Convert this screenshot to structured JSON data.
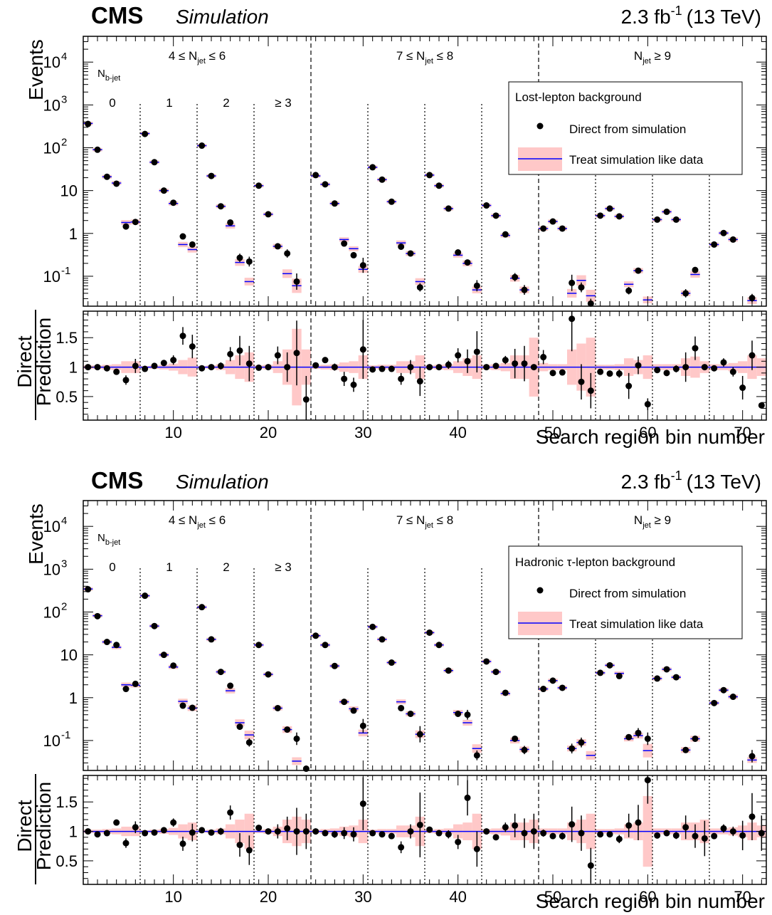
{
  "shared": {
    "cms_label": "CMS",
    "sim_label": "Simulation",
    "lumi_value": "2.3 fb",
    "lumi_exp": "-1",
    "lumi_energy": "(13 TeV)",
    "ylabel_top": "Events",
    "ylabel_ratio_top": "Direct",
    "ylabel_ratio_bottom": "Prediction",
    "xlabel": "Search region bin number",
    "ytick_labels_top": [
      "10^-1",
      "1",
      "10",
      "10^2",
      "10^3",
      "10^4"
    ],
    "ratio_tick_labels": [
      "0.5",
      "1",
      "1.5"
    ],
    "xtick_labels": [
      "10",
      "20",
      "30",
      "40",
      "50",
      "60",
      "70"
    ],
    "njet_regions": [
      {
        "pre": "4 ≤ N",
        "sub": "jet",
        "post": " ≤ 6",
        "x": 6.5
      },
      {
        "pre": "7 ≤ N",
        "sub": "jet",
        "post": " ≤ 8",
        "x": 30.5
      },
      {
        "pre": "N",
        "sub": "jet",
        "post": " ≥ 9",
        "x": 54.5
      }
    ],
    "nbjet_label": "N",
    "nbjet_sub": "b-jet",
    "nbjet_values": [
      {
        "label": "0",
        "x": 3.5
      },
      {
        "label": "1",
        "x": 9.5
      },
      {
        "label": "2",
        "x": 15.5
      },
      {
        "label": "≥ 3",
        "x": 21.5
      }
    ],
    "legend_markers": "Direct from simulation",
    "legend_band": "Treat simulation like data",
    "colors": {
      "band": "#ffc8c8",
      "line": "#0000ff",
      "marker": "#000000"
    }
  },
  "chart_data": [
    {
      "type": "scatter",
      "legend_title": "Lost-lepton background",
      "xlim": [
        0.5,
        72.5
      ],
      "ylim": [
        0.02,
        40000
      ],
      "yscale": "log",
      "ratio_ylim": [
        0.1,
        1.95
      ],
      "dashed_boundaries": [
        24.5,
        48.5
      ],
      "dotted_boundaries": [
        6.5,
        12.5,
        18.5,
        30.5,
        36.5,
        42.5,
        54.5,
        60.5,
        66.5
      ],
      "bins": [
        1,
        2,
        3,
        4,
        5,
        6,
        7,
        8,
        9,
        10,
        11,
        12,
        13,
        14,
        15,
        16,
        17,
        18,
        19,
        20,
        21,
        22,
        23,
        24,
        25,
        26,
        27,
        28,
        29,
        30,
        31,
        32,
        33,
        34,
        35,
        36,
        37,
        38,
        39,
        40,
        41,
        42,
        43,
        44,
        45,
        46,
        47,
        48,
        49,
        50,
        51,
        52,
        53,
        54,
        55,
        56,
        57,
        58,
        59,
        60,
        61,
        62,
        63,
        64,
        65,
        66,
        67,
        68,
        69,
        70,
        71,
        72
      ],
      "direct": [
        360,
        90,
        21,
        14.5,
        1.45,
        1.85,
        210,
        46,
        10,
        5.2,
        0.85,
        0.55,
        112,
        22,
        4.3,
        1.8,
        0.27,
        0.22,
        13,
        2.8,
        0.5,
        0.34,
        0.075,
        0.01,
        23,
        14,
        5,
        0.58,
        0.31,
        0.18,
        35,
        18,
        5.5,
        0.49,
        0.34,
        0.055,
        23,
        13,
        3.8,
        0.36,
        0.21,
        0.06,
        4.5,
        2.6,
        0.95,
        0.095,
        0.048,
        0.01,
        1.3,
        1.9,
        1.3,
        0.07,
        0.055,
        0.023,
        2.6,
        3.8,
        2.5,
        0.046,
        0.135,
        0.01,
        2.1,
        3.2,
        2.1,
        0.04,
        0.14,
        0.01,
        0.55,
        1.02,
        0.72,
        0.01,
        0.031,
        0.01
      ],
      "prediction": [
        370,
        90,
        21,
        15,
        1.8,
        1.85,
        215,
        46,
        10,
        5,
        0.55,
        0.42,
        112,
        22,
        4.3,
        1.5,
        0.21,
        0.075,
        13,
        2.8,
        0.5,
        0.115,
        0.06,
        0.01,
        22,
        14,
        5,
        0.72,
        0.44,
        0.145,
        35,
        18,
        5.5,
        0.6,
        0.34,
        0.075,
        23,
        13,
        3.8,
        0.31,
        0.2,
        0.048,
        4.5,
        2.6,
        0.9,
        0.09,
        0.048,
        0.01,
        1.3,
        1.9,
        1.3,
        0.04,
        0.08,
        0.035,
        2.6,
        3.8,
        2.5,
        0.065,
        0.135,
        0.028,
        2.1,
        3.2,
        2.1,
        0.04,
        0.11,
        0.01,
        0.55,
        1.02,
        0.72,
        0.01,
        0.027,
        0.01
      ],
      "ratio": [
        1.0,
        1.0,
        0.98,
        0.92,
        0.78,
        1.02,
        0.97,
        1.02,
        1.07,
        1.12,
        1.53,
        1.35,
        0.98,
        1.0,
        1.02,
        1.22,
        1.28,
        1.06,
        0.99,
        1.0,
        1.2,
        1.0,
        1.24,
        0.45,
        1.03,
        1.12,
        1.0,
        0.8,
        0.7,
        1.3,
        0.96,
        0.97,
        0.97,
        0.8,
        1.0,
        0.76,
        1.0,
        1.0,
        1.04,
        1.2,
        1.1,
        1.26,
        1.0,
        1.02,
        1.12,
        1.06,
        1.06,
        1.0,
        1.17,
        0.9,
        0.91,
        1.82,
        0.75,
        0.6,
        0.92,
        0.89,
        0.89,
        0.68,
        1.03,
        0.37,
        0.95,
        0.9,
        0.97,
        1.0,
        1.32,
        1.0,
        0.98,
        1.08,
        0.92,
        0.65,
        1.2,
        0.35
      ],
      "ratio_err": [
        0.03,
        0.03,
        0.03,
        0.05,
        0.08,
        0.12,
        0.03,
        0.04,
        0.05,
        0.08,
        0.15,
        0.2,
        0.02,
        0.04,
        0.06,
        0.12,
        0.25,
        0.3,
        0.04,
        0.05,
        0.15,
        0.25,
        0.55,
        0.4,
        0.03,
        0.04,
        0.06,
        0.12,
        0.12,
        0.5,
        0.03,
        0.04,
        0.05,
        0.1,
        0.12,
        0.25,
        0.03,
        0.04,
        0.07,
        0.12,
        0.2,
        0.35,
        0.04,
        0.05,
        0.07,
        0.25,
        0.3,
        0.0,
        0.12,
        0.05,
        0.05,
        0.55,
        0.3,
        0.3,
        0.05,
        0.05,
        0.07,
        0.22,
        0.15,
        0.1,
        0.04,
        0.05,
        0.06,
        0.25,
        0.2,
        0.0,
        0.05,
        0.07,
        0.08,
        0.2,
        0.25,
        0.0
      ],
      "band_err": [
        0.03,
        0.03,
        0.04,
        0.05,
        0.1,
        0.1,
        0.02,
        0.03,
        0.04,
        0.06,
        0.12,
        0.16,
        0.02,
        0.03,
        0.05,
        0.12,
        0.2,
        0.25,
        0.03,
        0.04,
        0.1,
        0.3,
        0.65,
        0.3,
        0.03,
        0.04,
        0.05,
        0.08,
        0.1,
        0.2,
        0.03,
        0.04,
        0.04,
        0.1,
        0.1,
        0.2,
        0.03,
        0.04,
        0.05,
        0.1,
        0.15,
        0.2,
        0.04,
        0.05,
        0.07,
        0.2,
        0.2,
        0.5,
        0.07,
        0.05,
        0.05,
        0.3,
        0.4,
        0.5,
        0.04,
        0.04,
        0.05,
        0.15,
        0.12,
        0.2,
        0.05,
        0.05,
        0.05,
        0.15,
        0.18,
        0.1,
        0.05,
        0.05,
        0.07,
        0.1,
        0.2,
        0.15
      ]
    },
    {
      "type": "scatter",
      "legend_title": "Hadronic τ-lepton background",
      "xlim": [
        0.5,
        72.5
      ],
      "ylim": [
        0.02,
        40000
      ],
      "yscale": "log",
      "ratio_ylim": [
        0.1,
        1.95
      ],
      "dashed_boundaries": [
        24.5,
        48.5
      ],
      "dotted_boundaries": [
        6.5,
        12.5,
        18.5,
        30.5,
        36.5,
        42.5,
        54.5,
        60.5,
        66.5
      ],
      "bins": [
        1,
        2,
        3,
        4,
        5,
        6,
        7,
        8,
        9,
        10,
        11,
        12,
        13,
        14,
        15,
        16,
        17,
        18,
        19,
        20,
        21,
        22,
        23,
        24,
        25,
        26,
        27,
        28,
        29,
        30,
        31,
        32,
        33,
        34,
        35,
        36,
        37,
        38,
        39,
        40,
        41,
        42,
        43,
        44,
        45,
        46,
        47,
        48,
        49,
        50,
        51,
        52,
        53,
        54,
        55,
        56,
        57,
        58,
        59,
        60,
        61,
        62,
        63,
        64,
        65,
        66,
        67,
        68,
        69,
        70,
        71,
        72
      ],
      "direct": [
        340,
        80,
        20,
        17,
        1.6,
        2.1,
        240,
        47,
        10,
        5.6,
        0.65,
        0.58,
        130,
        23,
        4,
        1.9,
        0.21,
        0.09,
        17,
        3.5,
        0.57,
        0.18,
        0.11,
        0.022,
        28,
        17,
        5.5,
        0.8,
        0.5,
        0.22,
        45,
        23,
        6.6,
        0.57,
        0.42,
        0.14,
        33,
        17,
        4.3,
        0.42,
        0.4,
        0.045,
        7,
        4,
        1.3,
        0.11,
        0.06,
        0.018,
        1.6,
        2.5,
        1.7,
        0.065,
        0.09,
        0.02,
        3.8,
        5.7,
        3.2,
        0.12,
        0.15,
        0.11,
        2.8,
        4.6,
        3,
        0.06,
        0.11,
        0.018,
        0.75,
        1.5,
        1.05,
        0.018,
        0.043,
        0.01
      ],
      "prediction": [
        345,
        82,
        20,
        15,
        2,
        1.95,
        240,
        47,
        10,
        5.2,
        0.82,
        0.57,
        130,
        23,
        4,
        1.45,
        0.26,
        0.135,
        17,
        3.5,
        0.57,
        0.18,
        0.033,
        0.01,
        28,
        17,
        5.5,
        0.8,
        0.55,
        0.15,
        45,
        23,
        6.6,
        0.8,
        0.42,
        0.14,
        33,
        17,
        4.3,
        0.45,
        0.26,
        0.065,
        7,
        4,
        1.25,
        0.1,
        0.062,
        0.01,
        1.6,
        2.5,
        1.7,
        0.065,
        0.09,
        0.045,
        3.8,
        5.7,
        3.7,
        0.11,
        0.13,
        0.058,
        2.8,
        4.6,
        3,
        0.06,
        0.11,
        0.01,
        0.75,
        1.5,
        1.05,
        0.01,
        0.035,
        0.01
      ],
      "ratio": [
        1.0,
        0.95,
        0.97,
        1.15,
        0.8,
        1.07,
        0.97,
        0.98,
        1.02,
        1.15,
        0.79,
        0.98,
        1.02,
        0.98,
        1.0,
        1.32,
        0.77,
        0.68,
        1.06,
        1.0,
        1.0,
        1.05,
        1.0,
        1.0,
        1.0,
        0.97,
        0.95,
        0.97,
        0.95,
        1.47,
        0.97,
        0.95,
        0.92,
        0.73,
        1.0,
        1.11,
        1.03,
        0.97,
        0.95,
        0.82,
        1.57,
        0.7,
        1.0,
        0.9,
        1.07,
        1.1,
        0.97,
        1.0,
        0.97,
        0.92,
        0.92,
        1.12,
        0.97,
        0.42,
        0.95,
        0.95,
        0.87,
        1.1,
        1.15,
        1.87,
        0.93,
        0.97,
        0.93,
        1.07,
        0.92,
        0.88,
        0.92,
        1.05,
        1.0,
        0.93,
        1.25,
        0.97
      ],
      "ratio_err": [
        0.03,
        0.03,
        0.04,
        0.05,
        0.08,
        0.1,
        0.03,
        0.04,
        0.05,
        0.07,
        0.12,
        0.15,
        0.02,
        0.04,
        0.06,
        0.12,
        0.2,
        0.25,
        0.04,
        0.05,
        0.12,
        0.2,
        0.4,
        0.3,
        0.03,
        0.04,
        0.06,
        0.1,
        0.12,
        0.45,
        0.03,
        0.04,
        0.05,
        0.1,
        0.12,
        0.55,
        0.03,
        0.04,
        0.07,
        0.12,
        0.3,
        0.3,
        0.04,
        0.05,
        0.08,
        0.2,
        0.25,
        0.3,
        0.06,
        0.05,
        0.06,
        0.3,
        0.3,
        0.3,
        0.05,
        0.05,
        0.07,
        0.2,
        0.3,
        0.4,
        0.05,
        0.05,
        0.06,
        0.2,
        0.2,
        0.3,
        0.05,
        0.07,
        0.08,
        0.25,
        0.4,
        0.3
      ],
      "band_err": [
        0.03,
        0.03,
        0.04,
        0.05,
        0.08,
        0.08,
        0.02,
        0.03,
        0.04,
        0.06,
        0.12,
        0.15,
        0.02,
        0.03,
        0.05,
        0.12,
        0.2,
        0.3,
        0.03,
        0.04,
        0.08,
        0.2,
        0.25,
        0.2,
        0.03,
        0.04,
        0.05,
        0.08,
        0.1,
        0.2,
        0.03,
        0.04,
        0.04,
        0.1,
        0.1,
        0.25,
        0.03,
        0.04,
        0.05,
        0.12,
        0.15,
        0.3,
        0.04,
        0.05,
        0.07,
        0.15,
        0.15,
        0.2,
        0.05,
        0.05,
        0.05,
        0.15,
        0.2,
        0.3,
        0.04,
        0.04,
        0.05,
        0.12,
        0.15,
        0.6,
        0.05,
        0.05,
        0.05,
        0.15,
        0.15,
        0.2,
        0.05,
        0.05,
        0.07,
        0.1,
        0.15,
        0.1
      ]
    }
  ]
}
